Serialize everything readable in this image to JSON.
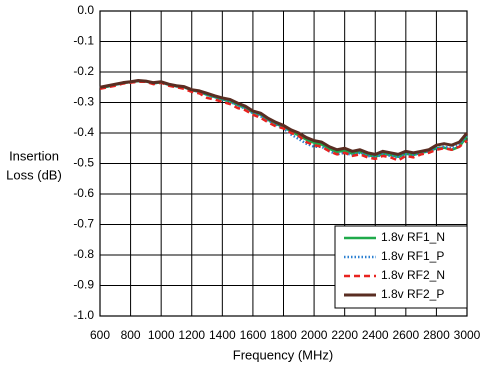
{
  "chart_data": {
    "type": "line",
    "xlabel": "Frequency (MHz)",
    "ylabel": [
      "Insertion",
      "Loss (dB)"
    ],
    "x": [
      600,
      650,
      700,
      750,
      800,
      850,
      900,
      950,
      1000,
      1050,
      1100,
      1150,
      1200,
      1250,
      1300,
      1350,
      1400,
      1450,
      1500,
      1550,
      1600,
      1650,
      1700,
      1750,
      1800,
      1850,
      1900,
      1950,
      2000,
      2050,
      2100,
      2150,
      2200,
      2250,
      2300,
      2350,
      2400,
      2450,
      2500,
      2550,
      2600,
      2650,
      2700,
      2750,
      2800,
      2850,
      2900,
      2950,
      3000
    ],
    "series": [
      {
        "name": "1.8v RF1_N",
        "color": "#1faa4a",
        "dash": "solid",
        "values": [
          -0.252,
          -0.248,
          -0.242,
          -0.236,
          -0.233,
          -0.23,
          -0.231,
          -0.237,
          -0.234,
          -0.242,
          -0.247,
          -0.25,
          -0.26,
          -0.265,
          -0.275,
          -0.282,
          -0.29,
          -0.296,
          -0.308,
          -0.318,
          -0.333,
          -0.34,
          -0.357,
          -0.37,
          -0.38,
          -0.395,
          -0.408,
          -0.422,
          -0.432,
          -0.438,
          -0.452,
          -0.462,
          -0.458,
          -0.468,
          -0.462,
          -0.472,
          -0.478,
          -0.468,
          -0.472,
          -0.478,
          -0.468,
          -0.472,
          -0.465,
          -0.46,
          -0.45,
          -0.448,
          -0.455,
          -0.445,
          -0.41
        ]
      },
      {
        "name": "1.8v RF1_P",
        "color": "#2a7fd0",
        "dash": "dotted",
        "values": [
          -0.252,
          -0.247,
          -0.242,
          -0.236,
          -0.233,
          -0.23,
          -0.231,
          -0.237,
          -0.234,
          -0.242,
          -0.247,
          -0.25,
          -0.26,
          -0.265,
          -0.275,
          -0.282,
          -0.29,
          -0.297,
          -0.31,
          -0.32,
          -0.335,
          -0.345,
          -0.36,
          -0.372,
          -0.385,
          -0.405,
          -0.42,
          -0.435,
          -0.445,
          -0.445,
          -0.46,
          -0.47,
          -0.465,
          -0.472,
          -0.465,
          -0.475,
          -0.48,
          -0.47,
          -0.475,
          -0.48,
          -0.47,
          -0.472,
          -0.465,
          -0.46,
          -0.45,
          -0.445,
          -0.45,
          -0.44,
          -0.405
        ]
      },
      {
        "name": "1.8v RF2_N",
        "color": "#e8231f",
        "dash": "dashed",
        "values": [
          -0.255,
          -0.25,
          -0.245,
          -0.238,
          -0.235,
          -0.232,
          -0.232,
          -0.24,
          -0.235,
          -0.245,
          -0.25,
          -0.255,
          -0.265,
          -0.27,
          -0.285,
          -0.29,
          -0.298,
          -0.305,
          -0.318,
          -0.325,
          -0.34,
          -0.35,
          -0.365,
          -0.378,
          -0.385,
          -0.4,
          -0.41,
          -0.43,
          -0.44,
          -0.445,
          -0.46,
          -0.47,
          -0.465,
          -0.475,
          -0.47,
          -0.48,
          -0.485,
          -0.475,
          -0.48,
          -0.49,
          -0.475,
          -0.48,
          -0.47,
          -0.465,
          -0.455,
          -0.45,
          -0.455,
          -0.445,
          -0.425
        ]
      },
      {
        "name": "1.8v RF2_P",
        "color": "#5a2d22",
        "dash": "solid",
        "values": [
          -0.25,
          -0.245,
          -0.24,
          -0.235,
          -0.232,
          -0.228,
          -0.23,
          -0.235,
          -0.232,
          -0.24,
          -0.245,
          -0.248,
          -0.258,
          -0.262,
          -0.27,
          -0.278,
          -0.285,
          -0.29,
          -0.302,
          -0.312,
          -0.328,
          -0.335,
          -0.352,
          -0.365,
          -0.375,
          -0.39,
          -0.4,
          -0.415,
          -0.425,
          -0.43,
          -0.445,
          -0.455,
          -0.45,
          -0.46,
          -0.455,
          -0.465,
          -0.47,
          -0.46,
          -0.465,
          -0.47,
          -0.46,
          -0.465,
          -0.46,
          -0.455,
          -0.44,
          -0.435,
          -0.44,
          -0.43,
          -0.4
        ]
      }
    ],
    "xlim": [
      600,
      3000
    ],
    "xticks": [
      600,
      800,
      1000,
      1200,
      1400,
      1600,
      1800,
      2000,
      2200,
      2400,
      2600,
      2800,
      3000
    ],
    "ylim": [
      -1.0,
      0.0
    ],
    "yticks": [
      {
        "value": 0.0,
        "label": "0.0"
      },
      -0.1,
      -0.2,
      -0.3,
      -0.4,
      -0.5,
      -0.6,
      -0.7,
      -0.8,
      -0.9,
      {
        "value": -1.0,
        "label": "-1.0"
      }
    ],
    "grid": true,
    "legend": "lower right"
  }
}
